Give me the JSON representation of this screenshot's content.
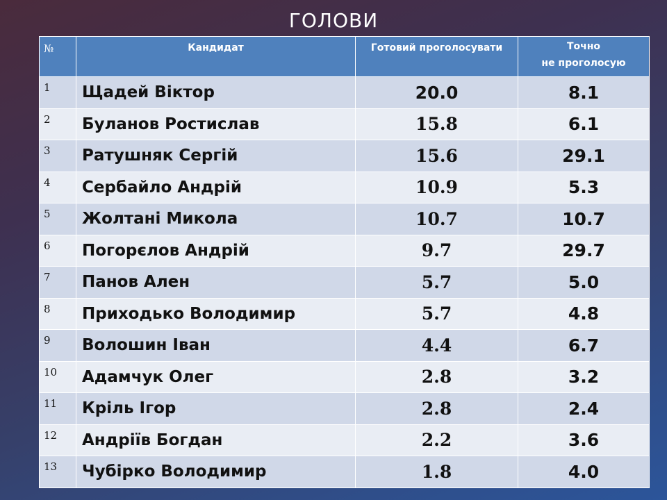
{
  "slide": {
    "title": "ГОЛОВИ"
  },
  "table": {
    "headers": {
      "num": "№",
      "candidate": "Кандидат",
      "ready": "Готовий проголосувати",
      "not_vote_line1": "Точно",
      "not_vote_line2": "не проголосую"
    },
    "rows": [
      {
        "n": "1",
        "name": "Щадей Віктор",
        "ready": "20.0",
        "not": "8.1"
      },
      {
        "n": "2",
        "name": "Буланов Ростислав",
        "ready": "15.8",
        "not": "6.1"
      },
      {
        "n": "3",
        "name": "Ратушняк Сергій",
        "ready": "15.6",
        "not": "29.1"
      },
      {
        "n": "4",
        "name": "Сербайло Андрій",
        "ready": "10.9",
        "not": "5.3"
      },
      {
        "n": "5",
        "name": "Жолтані Микола",
        "ready": "10.7",
        "not": "10.7"
      },
      {
        "n": "6",
        "name": "Погорєлов Андрій",
        "ready": "9.7",
        "not": "29.7"
      },
      {
        "n": "7",
        "name": "Панов Ален",
        "ready": "5.7",
        "not": "5.0"
      },
      {
        "n": "8",
        "name": "Приходько Володимир",
        "ready": "5.7",
        "not": "4.8"
      },
      {
        "n": "9",
        "name": "Волошин Іван",
        "ready": "4.4",
        "not": "6.7"
      },
      {
        "n": "10",
        "name": "Адамчук Олег",
        "ready": "2.8",
        "not": "3.2"
      },
      {
        "n": "11",
        "name": "Кріль Ігор",
        "ready": "2.8",
        "not": "2.4"
      },
      {
        "n": "12",
        "name": "Андріїв Богдан",
        "ready": "2.2",
        "not": "3.6"
      },
      {
        "n": "13",
        "name": "Чубірко Володимир",
        "ready": "1.8",
        "not": "4.0"
      }
    ]
  }
}
